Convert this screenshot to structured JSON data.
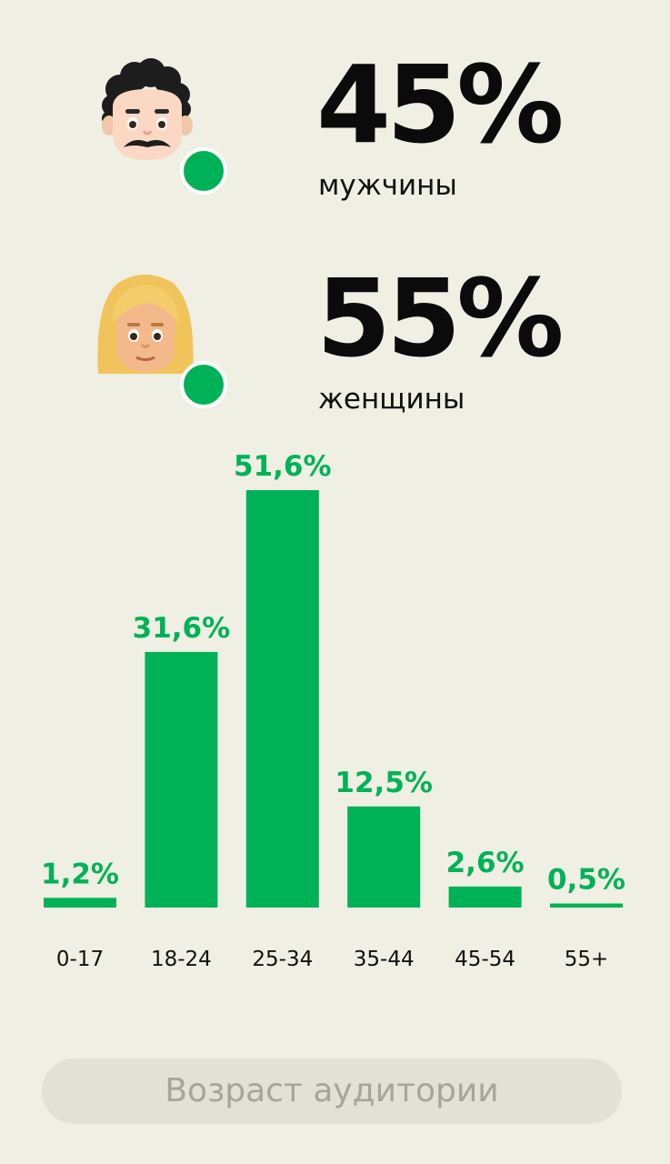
{
  "gender": {
    "men": {
      "percent": "45%",
      "label": "мужчины",
      "icon": "man-emoji-icon"
    },
    "women": {
      "percent": "55%",
      "label": "женщины",
      "icon": "woman-emoji-icon"
    },
    "online_color": "#00b257"
  },
  "chart_data": {
    "type": "bar",
    "categories": [
      "0-17",
      "18-24",
      "25-34",
      "35-44",
      "45-54",
      "55+"
    ],
    "values": [
      1.2,
      31.6,
      51.6,
      12.5,
      2.6,
      0.5
    ],
    "value_labels": [
      "1,2%",
      "31,6%",
      "51,6%",
      "12,5%",
      "2,6%",
      "0,5%"
    ],
    "unit": "%",
    "ylim": [
      0,
      51.6
    ],
    "grid": false,
    "bar_color": "#00b257",
    "title": "",
    "xlabel": "",
    "ylabel": ""
  },
  "footer": {
    "label": "Возраст аудитории"
  }
}
